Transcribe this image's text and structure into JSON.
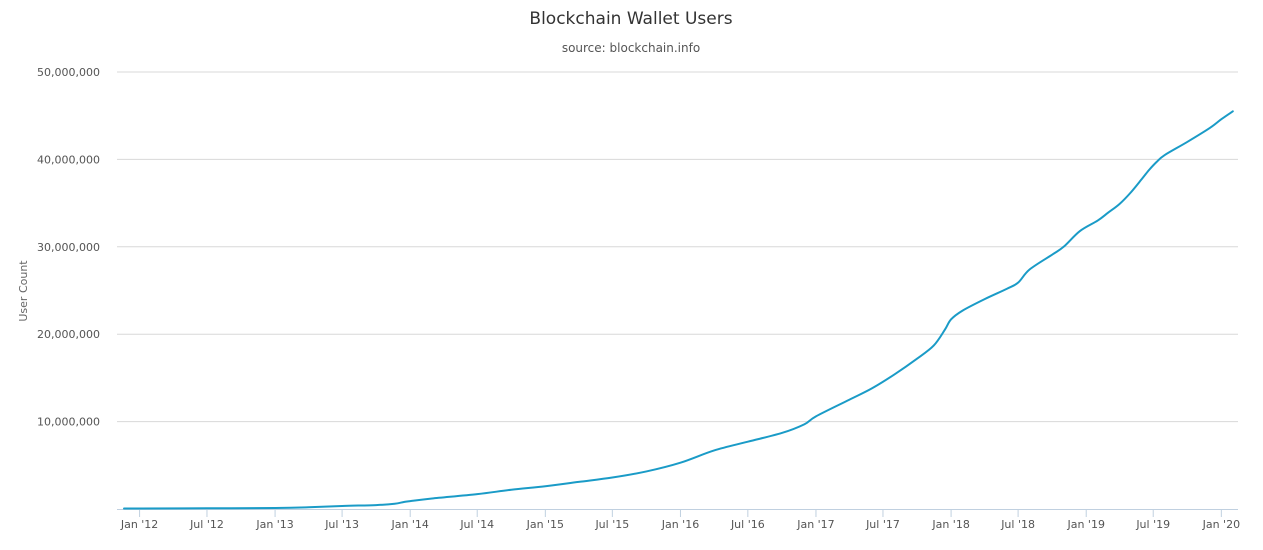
{
  "chart_data": {
    "type": "line",
    "title": "Blockchain Wallet Users",
    "subtitle": "source: blockchain.info",
    "ylabel": "User Count",
    "xlabel": "",
    "ylim": [
      0,
      50000000
    ],
    "xlim": [
      "2011-11-01",
      "2020-02-15"
    ],
    "y_ticks": [
      {
        "value": 10000000,
        "label": "10,000,000"
      },
      {
        "value": 20000000,
        "label": "20,000,000"
      },
      {
        "value": 30000000,
        "label": "30,000,000"
      },
      {
        "value": 40000000,
        "label": "40,000,000"
      },
      {
        "value": 50000000,
        "label": "50,000,000"
      }
    ],
    "x_ticks": [
      {
        "date": "2012-01-01",
        "label": "Jan '12"
      },
      {
        "date": "2012-07-01",
        "label": "Jul '12"
      },
      {
        "date": "2013-01-01",
        "label": "Jan '13"
      },
      {
        "date": "2013-07-01",
        "label": "Jul '13"
      },
      {
        "date": "2014-01-01",
        "label": "Jan '14"
      },
      {
        "date": "2014-07-01",
        "label": "Jul '14"
      },
      {
        "date": "2015-01-01",
        "label": "Jan '15"
      },
      {
        "date": "2015-07-01",
        "label": "Jul '15"
      },
      {
        "date": "2016-01-01",
        "label": "Jan '16"
      },
      {
        "date": "2016-07-01",
        "label": "Jul '16"
      },
      {
        "date": "2017-01-01",
        "label": "Jan '17"
      },
      {
        "date": "2017-07-01",
        "label": "Jul '17"
      },
      {
        "date": "2018-01-01",
        "label": "Jan '18"
      },
      {
        "date": "2018-07-01",
        "label": "Jul '18"
      },
      {
        "date": "2019-01-01",
        "label": "Jan '19"
      },
      {
        "date": "2019-07-01",
        "label": "Jul '19"
      },
      {
        "date": "2020-01-01",
        "label": "Jan '20"
      }
    ],
    "grid": "horizontal",
    "legend": "none",
    "colors": {
      "line": "#1a9bc7",
      "grid": "#d8d8d8",
      "axis": "#c0d0e0"
    },
    "series": [
      {
        "x": [
          "2011-11-20",
          "2012-01-01",
          "2012-07-01",
          "2013-01-01",
          "2013-04-01",
          "2013-07-01",
          "2013-10-01",
          "2013-11-20",
          "2013-12-15",
          "2014-01-01",
          "2014-03-01",
          "2014-07-01",
          "2014-10-01",
          "2015-01-01",
          "2015-04-01",
          "2015-07-01",
          "2015-10-01",
          "2016-01-01",
          "2016-04-01",
          "2016-07-01",
          "2016-10-01",
          "2016-12-01",
          "2017-01-01",
          "2017-04-01",
          "2017-06-01",
          "2017-08-01",
          "2017-10-01",
          "2017-11-15",
          "2017-12-15",
          "2018-01-01",
          "2018-02-01",
          "2018-04-01",
          "2018-06-01",
          "2018-07-01",
          "2018-08-01",
          "2018-10-01",
          "2018-11-01",
          "2018-12-15",
          "2019-02-01",
          "2019-03-01",
          "2019-04-01",
          "2019-05-01",
          "2019-06-01",
          "2019-06-20",
          "2019-07-10",
          "2019-08-01",
          "2019-10-01",
          "2019-12-01",
          "2020-01-01",
          "2020-02-01"
        ],
        "values": [
          50000,
          60000,
          80000,
          120000,
          200000,
          350000,
          450000,
          600000,
          800000,
          900000,
          1200000,
          1700000,
          2200000,
          2600000,
          3100000,
          3600000,
          4300000,
          5300000,
          6700000,
          7700000,
          8700000,
          9700000,
          10600000,
          12500000,
          13800000,
          15400000,
          17200000,
          18700000,
          20500000,
          21700000,
          22700000,
          24000000,
          25200000,
          25900000,
          27400000,
          29100000,
          30000000,
          31800000,
          33000000,
          33900000,
          34900000,
          36200000,
          37800000,
          38800000,
          39700000,
          40500000,
          42000000,
          43600000,
          44600000,
          45500000
        ]
      }
    ]
  }
}
